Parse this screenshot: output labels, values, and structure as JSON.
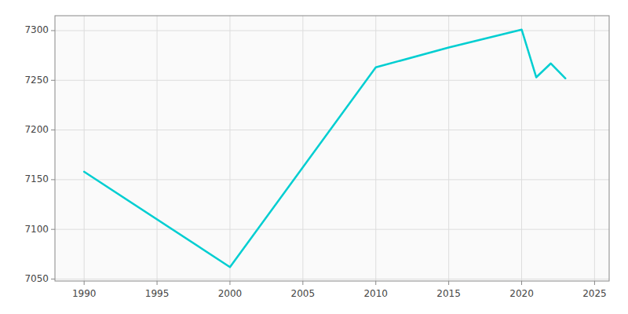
{
  "chart_data": {
    "type": "line",
    "x": [
      1990,
      2000,
      2010,
      2015,
      2020,
      2021,
      2022,
      2023
    ],
    "values": [
      7158,
      7062,
      7263,
      7283,
      7301,
      7253,
      7267,
      7252
    ],
    "color": "#00CED1",
    "xlim": [
      1988,
      2026
    ],
    "ylim": [
      7048,
      7315
    ],
    "xticks": [
      1990,
      1995,
      2000,
      2005,
      2010,
      2015,
      2020,
      2025
    ],
    "yticks": [
      7050,
      7100,
      7150,
      7200,
      7250,
      7300
    ],
    "grid": true
  }
}
